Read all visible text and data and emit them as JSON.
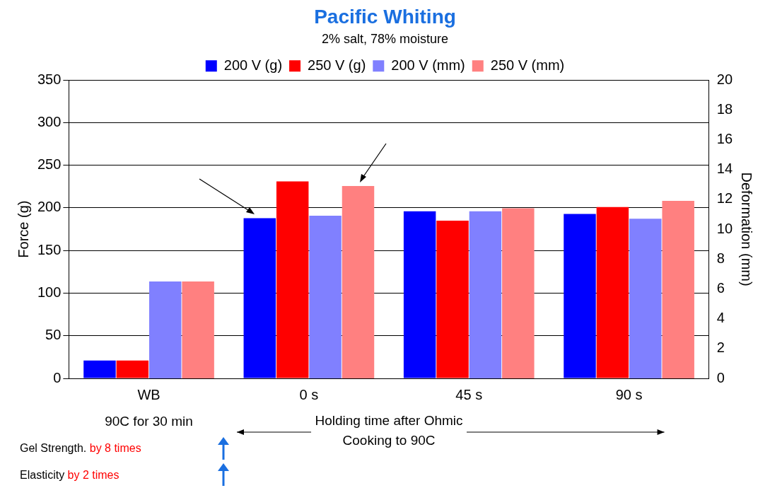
{
  "chart_data": {
    "type": "bar",
    "title": "Pacific Whiting",
    "subtitle": "2% salt, 78% moisture",
    "ylabel": "Force (g)",
    "y2label": "Deformation (mm)",
    "categories": [
      "WB",
      "0 s",
      "45 s",
      "90 s"
    ],
    "series": [
      {
        "name": "200 V (g)",
        "color": "#0000ff",
        "values": [
          21,
          188,
          196,
          193
        ]
      },
      {
        "name": "250 V (g)",
        "color": "#ff0000",
        "values": [
          21,
          231,
          185,
          201
        ]
      },
      {
        "name": "200 V (mm)",
        "color": "#8080ff",
        "axis": "y2",
        "values": [
          6.5,
          10.9,
          11.2,
          10.7
        ]
      },
      {
        "name": "250 V (mm)",
        "color": "#ff8080",
        "axis": "y2",
        "values": [
          6.5,
          12.9,
          11.4,
          11.9
        ]
      }
    ],
    "ylim": [
      0,
      350
    ],
    "yticks": [
      0,
      50,
      100,
      150,
      200,
      250,
      300,
      350
    ],
    "y2lim": [
      0,
      20
    ],
    "y2ticks": [
      0,
      2,
      4,
      6,
      8,
      10,
      12,
      14,
      16,
      18,
      20
    ],
    "grid": "y",
    "legend": "top",
    "annotations": [
      "90C for 30 min",
      "Holding time after Ohmic Cooking to 90C",
      "Gel Strength.",
      "by 8 times",
      "Elasticity",
      "by 2 times"
    ]
  }
}
